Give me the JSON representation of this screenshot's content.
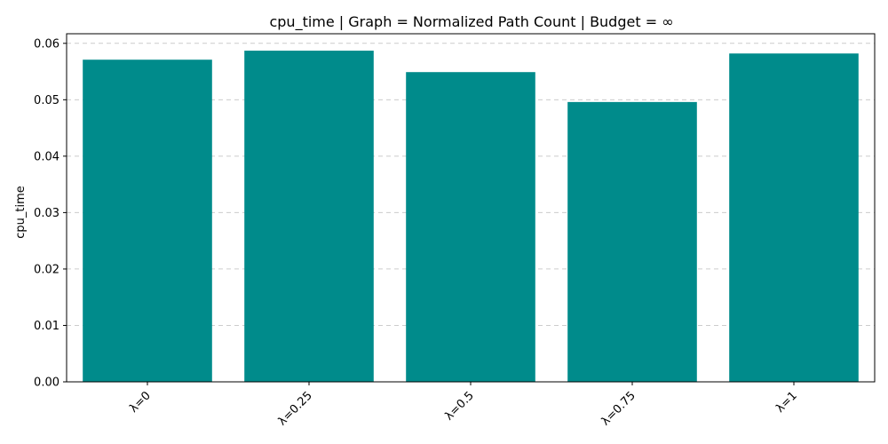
{
  "chart_data": {
    "type": "bar",
    "title": "cpu_time | Graph = Normalized Path Count | Budget = ∞",
    "xlabel": "",
    "ylabel": "cpu_time",
    "categories": [
      "λ=0",
      "λ=0.25",
      "λ=0.5",
      "λ=0.75",
      "λ=1"
    ],
    "values": [
      0.0571,
      0.0587,
      0.0549,
      0.0496,
      0.0582
    ],
    "ylim": [
      0,
      0.0617
    ],
    "yticks": [
      0.0,
      0.01,
      0.02,
      0.03,
      0.04,
      0.05,
      0.06
    ],
    "ytick_labels": [
      "0.00",
      "0.01",
      "0.02",
      "0.03",
      "0.04",
      "0.05",
      "0.06"
    ],
    "bar_color": "#008b8b",
    "grid": "y-dashed",
    "xtick_rotation": 45
  }
}
